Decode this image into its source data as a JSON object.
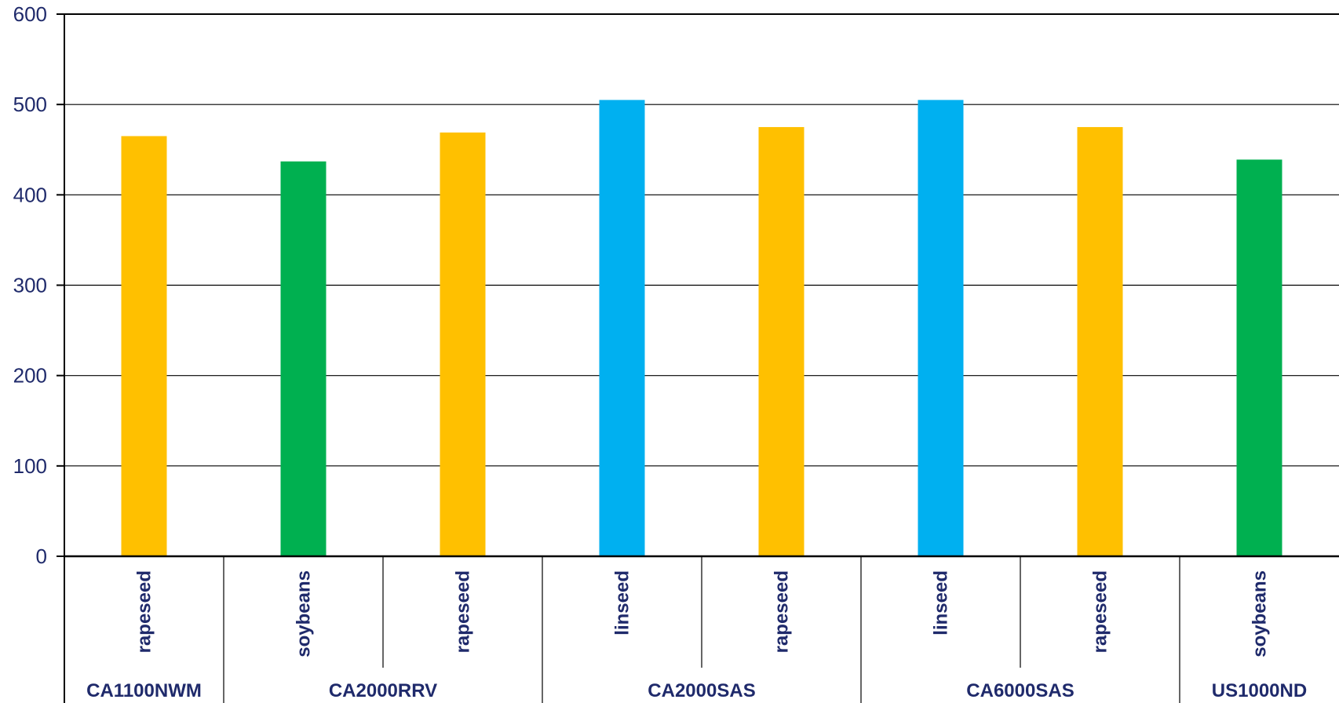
{
  "chart_data": {
    "type": "bar",
    "ylim": [
      0,
      600
    ],
    "yticks": [
      0,
      100,
      200,
      300,
      400,
      500,
      600
    ],
    "grid": true,
    "groups": [
      {
        "name": "CA1100NWM",
        "size": 1
      },
      {
        "name": "CA2000RRV",
        "size": 2
      },
      {
        "name": "CA2000SAS",
        "size": 2
      },
      {
        "name": "CA6000SAS",
        "size": 2
      },
      {
        "name": "US1000ND",
        "size": 1
      }
    ],
    "categories": [
      "rapeseed",
      "soybeans",
      "rapeseed",
      "linseed",
      "rapeseed",
      "linseed",
      "rapeseed",
      "soybeans"
    ],
    "values": [
      465,
      437,
      469,
      505,
      475,
      505,
      475,
      439
    ],
    "colors": {
      "rapeseed": "#FFC000",
      "soybeans": "#00B050",
      "linseed": "#00B0F0"
    }
  }
}
